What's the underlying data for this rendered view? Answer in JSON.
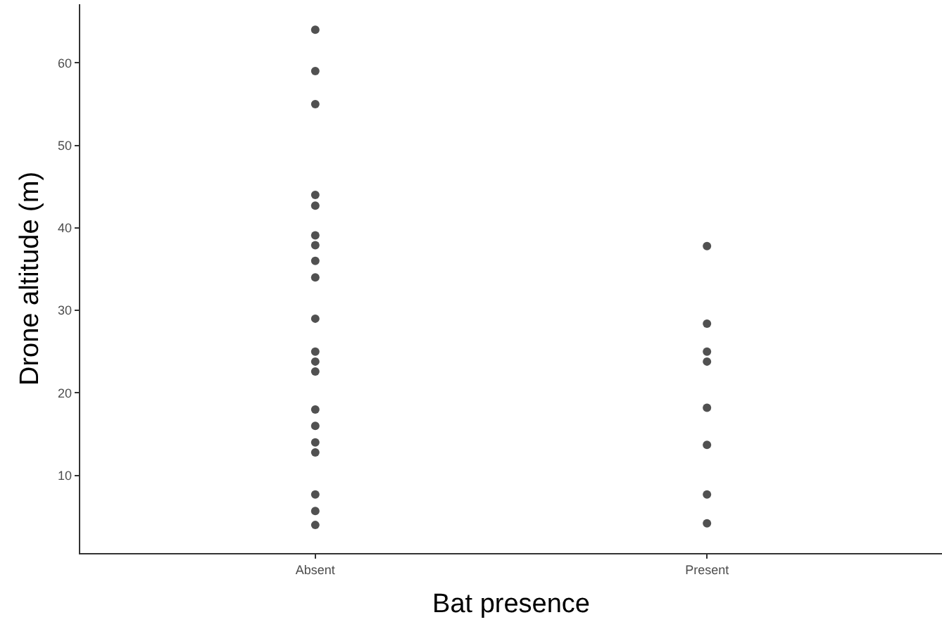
{
  "chart_data": {
    "type": "scatter",
    "xlabel": "Bat presence",
    "ylabel": "Drone altitude (m)",
    "categories": [
      "Absent",
      "Present"
    ],
    "ylim": [
      0.6,
      67.1
    ],
    "yticks": [
      10,
      20,
      30,
      40,
      50,
      60
    ],
    "grid": false,
    "marker": "circle",
    "series": [
      {
        "color": "#333333",
        "x": [
          "Absent",
          "Absent",
          "Absent",
          "Absent",
          "Absent",
          "Absent",
          "Absent",
          "Absent",
          "Absent",
          "Absent",
          "Absent",
          "Absent",
          "Absent",
          "Absent",
          "Absent",
          "Absent",
          "Absent",
          "Absent",
          "Absent",
          "Absent"
        ],
        "values": [
          64.0,
          59.0,
          55.0,
          44.0,
          42.7,
          39.1,
          37.9,
          36.0,
          34.0,
          29.0,
          25.0,
          23.8,
          22.6,
          18.0,
          16.0,
          14.0,
          12.8,
          7.7,
          5.7,
          4.0
        ]
      },
      {
        "color": "#333333",
        "x": [
          "Present",
          "Present",
          "Present",
          "Present",
          "Present",
          "Present",
          "Present",
          "Present"
        ],
        "values": [
          37.8,
          28.4,
          25.0,
          23.8,
          18.2,
          13.7,
          7.7,
          4.2
        ]
      }
    ]
  }
}
